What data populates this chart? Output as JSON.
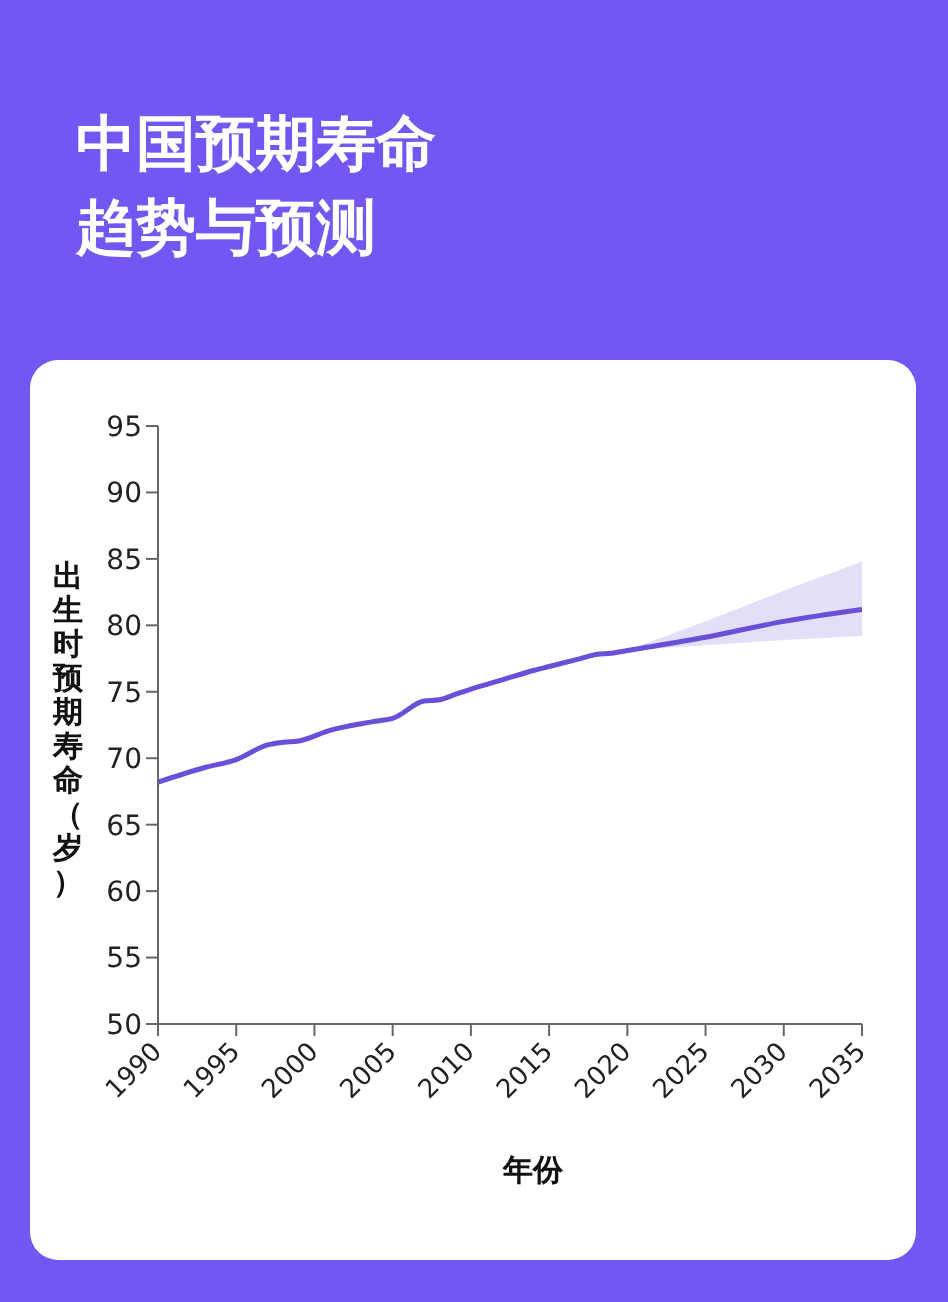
{
  "chart_data": {
    "type": "line",
    "title": "中国预期寿命趋势与预测",
    "xlabel": "年份",
    "ylabel": "出生时预期寿命（岁）",
    "x": [
      1990,
      1993,
      1995,
      1997,
      1998,
      1999,
      2001,
      2003,
      2004,
      2005,
      2007,
      2008,
      2009,
      2010,
      2012,
      2014,
      2015,
      2017,
      2018,
      2019,
      2020,
      2025,
      2030,
      2035
    ],
    "series": [
      {
        "color": "#6a4fd8",
        "values": [
          68.2,
          69.3,
          69.9,
          71.0,
          71.2,
          71.3,
          72.1,
          72.6,
          72.8,
          73.0,
          74.3,
          74.4,
          74.8,
          75.2,
          75.9,
          76.6,
          76.9,
          77.5,
          77.8,
          77.9,
          78.1,
          79.1,
          80.3,
          81.2
        ],
        "lower": [
          null,
          null,
          null,
          null,
          null,
          null,
          null,
          null,
          null,
          null,
          null,
          null,
          null,
          null,
          null,
          null,
          null,
          null,
          null,
          null,
          78.1,
          78.5,
          78.9,
          79.2
        ],
        "upper": [
          null,
          null,
          null,
          null,
          null,
          null,
          null,
          null,
          null,
          null,
          null,
          null,
          null,
          null,
          null,
          null,
          null,
          null,
          null,
          null,
          78.1,
          80.3,
          82.6,
          84.8
        ]
      }
    ],
    "xlim": [
      1990,
      2035
    ],
    "xticks": [
      1990,
      1995,
      2000,
      2005,
      2010,
      2015,
      2020,
      2025,
      2030,
      2035
    ],
    "ylim": [
      50,
      95
    ],
    "yticks": [
      50,
      55,
      60,
      65,
      70,
      75,
      80,
      85,
      90,
      95
    ],
    "grid": false,
    "legend": false,
    "marker": "none",
    "line_style": "solid"
  }
}
